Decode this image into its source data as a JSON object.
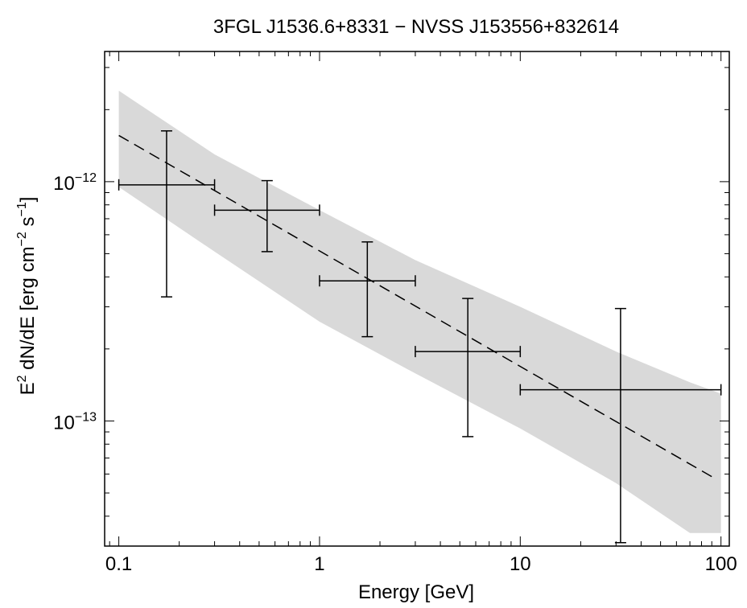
{
  "chart_data": {
    "type": "scatter",
    "title": "3FGL J1536.6+8331 − NVSS J153556+832614",
    "xlabel": "Energy [GeV]",
    "ylabel": "E² dN/dE [erg cm⁻² s⁻¹]",
    "ylabel_parts": {
      "e": "E",
      "sup2": "2",
      "mid": " dN/dE [erg cm",
      "supm2": "−2",
      "s": " s",
      "supm1": "−1",
      "end": "]"
    },
    "x_scale": "log",
    "y_scale": "log",
    "xlim": [
      0.085,
      110
    ],
    "ylim": [
      3e-14,
      3.5e-12
    ],
    "grid": false,
    "legend": "none",
    "x_ticks": [
      {
        "value": 0.1,
        "label": "0.1"
      },
      {
        "value": 1,
        "label": "1"
      },
      {
        "value": 10,
        "label": "10"
      },
      {
        "value": 100,
        "label": "100"
      }
    ],
    "y_ticks": [
      {
        "value": 1e-12,
        "base": "10",
        "exp": "−12"
      },
      {
        "value": 1e-13,
        "base": "10",
        "exp": "−13"
      }
    ],
    "points": [
      {
        "x": 0.173,
        "y": 9.7e-13,
        "xerr": [
          0.1,
          0.3
        ],
        "yerr": [
          3.3e-13,
          1.63e-12
        ]
      },
      {
        "x": 0.548,
        "y": 7.6e-13,
        "xerr": [
          0.3,
          1.0
        ],
        "yerr": [
          5.1e-13,
          1.01e-12
        ]
      },
      {
        "x": 1.73,
        "y": 3.85e-13,
        "xerr": [
          1.0,
          3.0
        ],
        "yerr": [
          2.25e-13,
          5.6e-13
        ]
      },
      {
        "x": 5.48,
        "y": 1.95e-13,
        "xerr": [
          3.0,
          10.0
        ],
        "yerr": [
          8.6e-14,
          3.25e-13
        ]
      },
      {
        "x": 31.6,
        "y": 1.35e-13,
        "xerr": [
          10.0,
          100.0
        ],
        "yerr": [
          3.1e-14,
          2.95e-13
        ]
      }
    ],
    "model_line": {
      "style": "dashed",
      "x": [
        0.1,
        95
      ],
      "y": [
        1.56e-12,
        5.7e-14
      ]
    },
    "uncertainty_band": {
      "color": "#d9d9d9",
      "x": [
        0.1,
        0.3,
        1.0,
        3.0,
        10.0,
        30.0,
        70.0,
        100.0
      ],
      "upper": [
        2.4e-12,
        1.3e-12,
        7.6e-13,
        4.7e-13,
        3e-13,
        1.95e-13,
        1.45e-13,
        1.3e-13
      ],
      "lower": [
        9.5e-13,
        5.1e-13,
        2.6e-13,
        1.58e-13,
        9.3e-14,
        5.5e-14,
        3.4e-14,
        3.4e-14
      ]
    },
    "colors": {
      "marks": "#000000",
      "band": "#d9d9d9"
    }
  }
}
